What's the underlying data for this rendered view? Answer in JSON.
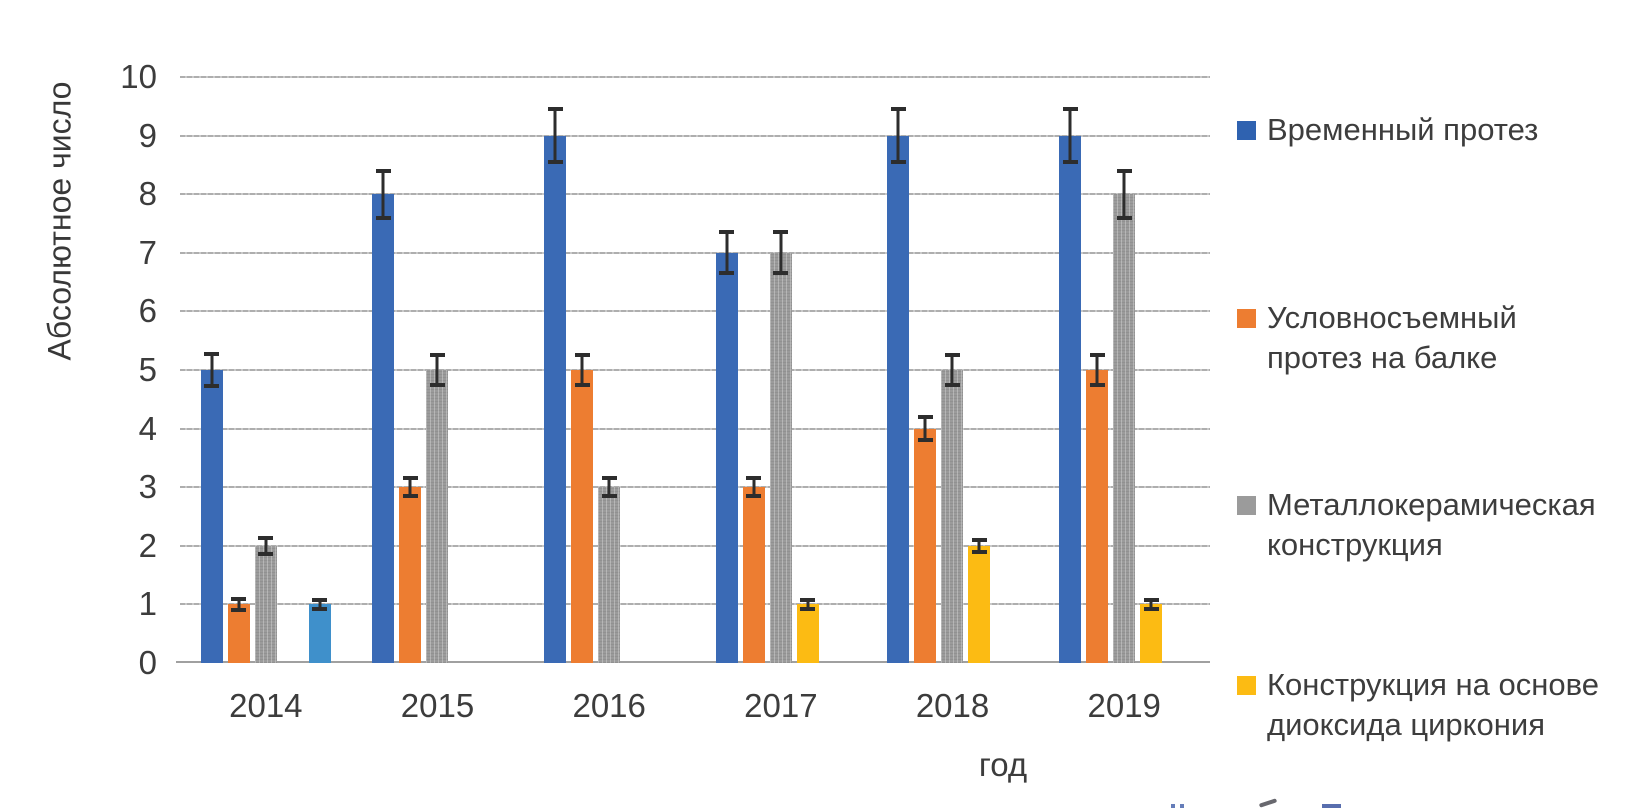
{
  "chart_data": {
    "type": "bar",
    "title": "",
    "xlabel": "год",
    "ylabel": "Абсолютное число",
    "categories": [
      "2014",
      "2015",
      "2016",
      "2017",
      "2018",
      "2019"
    ],
    "series": [
      {
        "name": "Временный протез",
        "color": "#3a6ab5",
        "values": [
          5,
          8,
          9,
          7,
          9,
          9
        ],
        "errors": [
          0.27,
          0.4,
          0.45,
          0.35,
          0.45,
          0.45
        ]
      },
      {
        "name": "Условносъемный протез на балке",
        "color": "#ed7d31",
        "values": [
          1,
          3,
          5,
          3,
          4,
          5
        ],
        "errors": [
          0.1,
          0.15,
          0.25,
          0.15,
          0.2,
          0.25
        ]
      },
      {
        "name": "Металлокерамическая конструкция",
        "color": "#9b9b9b",
        "values": [
          2,
          5,
          3,
          7,
          5,
          8
        ],
        "errors": [
          0.14,
          0.25,
          0.15,
          0.35,
          0.25,
          0.4
        ],
        "textured": true
      },
      {
        "name": "Конструкция на основе диоксида циркония",
        "color": "#fcbb13",
        "values": [
          0,
          0,
          0,
          1,
          2,
          1
        ],
        "errors": [
          0,
          0,
          0,
          0.08,
          0.1,
          0.08
        ]
      },
      {
        "name": "",
        "color": "#3f90cb",
        "values": [
          1,
          0,
          0,
          0,
          0,
          0
        ],
        "errors": [
          0.08,
          0,
          0,
          0,
          0,
          0
        ],
        "in_legend": false
      }
    ],
    "ylim": [
      0,
      10
    ],
    "ytick_step": 1,
    "yticks": [
      "0",
      "1",
      "2",
      "3",
      "4",
      "5",
      "6",
      "7",
      "8",
      "9",
      "10"
    ],
    "grid": true,
    "error_bars": true,
    "legend_position": "right"
  },
  "axes": {
    "xlabel": "год",
    "ylabel": "Абсолютное число"
  },
  "legend": {
    "items": [
      {
        "lines": [
          "Временный протез"
        ],
        "color": "#2f62b0"
      },
      {
        "lines": [
          "Условносъемный",
          "протез на балке"
        ],
        "color": "#ed7d31"
      },
      {
        "lines": [
          "Металлокерамическая",
          "конструкция"
        ],
        "color": "#9b9b9b"
      },
      {
        "lines": [
          "Конструкция на основе",
          "диоксида циркония"
        ],
        "color": "#fcbb13"
      }
    ]
  },
  "colors": {
    "background": "#ffffff",
    "gridline": "#b6b6b6",
    "axis_line": "#a0a0a0",
    "text": "#3c3c3c",
    "error_bar": "#2d2d2d"
  }
}
